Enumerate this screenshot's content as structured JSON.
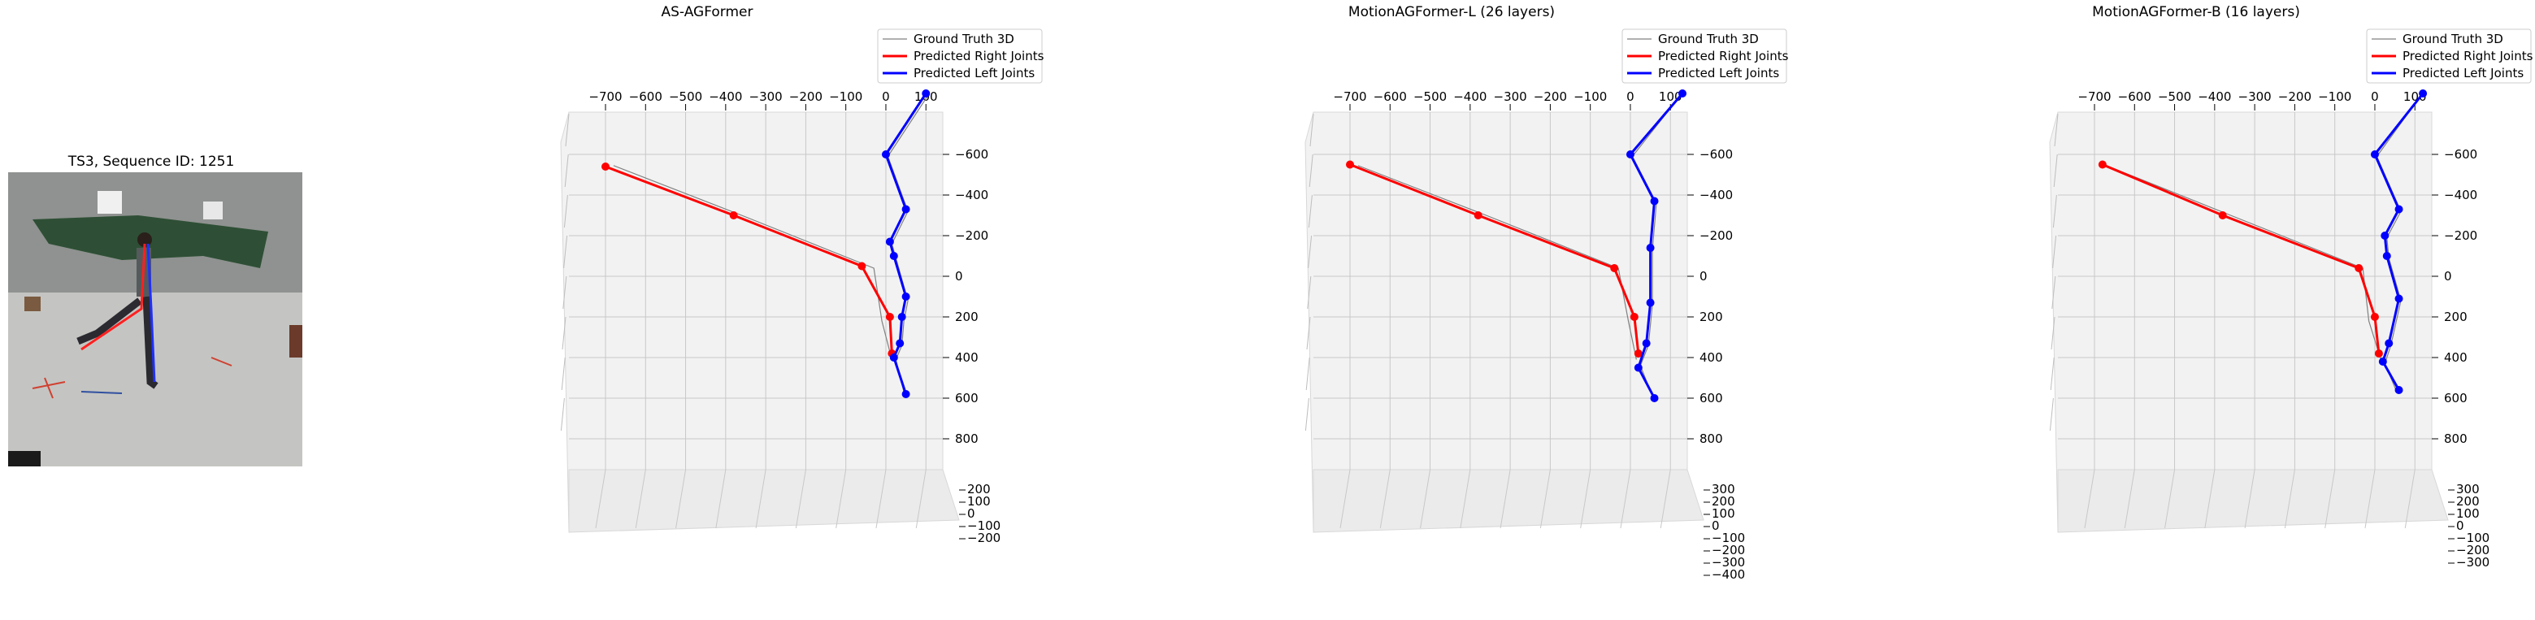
{
  "photo": {
    "title": "TS3, Sequence ID: 1251"
  },
  "legend": {
    "gt": "Ground Truth 3D",
    "right": "Predicted Right Joints",
    "left": "Predicted Left Joints"
  },
  "colors": {
    "gt": "#808080",
    "right": "#ff0000",
    "left": "#0000ff",
    "pane": "#f2f2f2",
    "grid": "#c8c8c8"
  },
  "chart_data": [
    {
      "type": "scatter",
      "title": "AS-AGFormer",
      "x_ticks": [
        -700,
        -600,
        -500,
        -400,
        -300,
        -200,
        -100,
        0,
        100
      ],
      "z_ticks": [
        -600,
        -400,
        -200,
        0,
        200,
        400,
        600,
        800
      ],
      "y_ticks": [
        200,
        100,
        0,
        -100,
        -200
      ],
      "xlim": [
        -730,
        150
      ],
      "zlim": [
        -700,
        950
      ],
      "right_joints": [
        [
          15,
          380
        ],
        [
          10,
          200
        ],
        [
          -60,
          -50
        ],
        [
          -380,
          -300
        ],
        [
          -700,
          -540
        ]
      ],
      "left_joints": [
        [
          50,
          580
        ],
        [
          20,
          400
        ],
        [
          35,
          330
        ],
        [
          40,
          200
        ],
        [
          50,
          100
        ],
        [
          20,
          -100
        ],
        [
          10,
          -170
        ],
        [
          50,
          -330
        ],
        [
          0,
          -600
        ],
        [
          100,
          -900
        ]
      ],
      "gt_right": [
        [
          15,
          410
        ],
        [
          -10,
          220
        ],
        [
          -30,
          -40
        ],
        [
          -360,
          -300
        ],
        [
          -680,
          -545
        ]
      ],
      "gt_left": [
        [
          45,
          570
        ],
        [
          25,
          410
        ],
        [
          40,
          340
        ],
        [
          45,
          220
        ],
        [
          55,
          120
        ],
        [
          25,
          -90
        ],
        [
          15,
          -160
        ],
        [
          55,
          -320
        ],
        [
          5,
          -590
        ],
        [
          105,
          -890
        ]
      ]
    },
    {
      "type": "scatter",
      "title": "MotionAGFormer-L (26 layers)",
      "x_ticks": [
        -700,
        -600,
        -500,
        -400,
        -300,
        -200,
        -100,
        0,
        100
      ],
      "z_ticks": [
        -600,
        -400,
        -200,
        0,
        200,
        400,
        600,
        800
      ],
      "y_ticks": [
        300,
        200,
        100,
        0,
        -100,
        -200,
        -300,
        -400
      ],
      "xlim": [
        -730,
        150
      ],
      "zlim": [
        -700,
        950
      ],
      "right_joints": [
        [
          20,
          380
        ],
        [
          10,
          200
        ],
        [
          -40,
          -40
        ],
        [
          -380,
          -300
        ],
        [
          -700,
          -550
        ]
      ],
      "left_joints": [
        [
          60,
          600
        ],
        [
          20,
          450
        ],
        [
          40,
          330
        ],
        [
          50,
          130
        ],
        [
          50,
          -140
        ],
        [
          60,
          -370
        ],
        [
          0,
          -600
        ],
        [
          130,
          -900
        ]
      ],
      "gt_right": [
        [
          15,
          410
        ],
        [
          -5,
          220
        ],
        [
          -30,
          -40
        ],
        [
          -360,
          -300
        ],
        [
          -680,
          -545
        ]
      ],
      "gt_left": [
        [
          55,
          590
        ],
        [
          25,
          440
        ],
        [
          45,
          340
        ],
        [
          55,
          140
        ],
        [
          55,
          -130
        ],
        [
          65,
          -360
        ],
        [
          5,
          -590
        ],
        [
          125,
          -890
        ]
      ]
    },
    {
      "type": "scatter",
      "title": "MotionAGFormer-B (16 layers)",
      "x_ticks": [
        -700,
        -600,
        -500,
        -400,
        -300,
        -200,
        -100,
        0,
        100
      ],
      "z_ticks": [
        -600,
        -400,
        -200,
        0,
        200,
        400,
        600,
        800
      ],
      "y_ticks": [
        300,
        200,
        100,
        0,
        -100,
        -200,
        -300
      ],
      "xlim": [
        -730,
        150
      ],
      "zlim": [
        -700,
        950
      ],
      "right_joints": [
        [
          10,
          380
        ],
        [
          0,
          200
        ],
        [
          -40,
          -40
        ],
        [
          -380,
          -300
        ],
        [
          -680,
          -550
        ]
      ],
      "left_joints": [
        [
          60,
          560
        ],
        [
          20,
          420
        ],
        [
          35,
          330
        ],
        [
          60,
          110
        ],
        [
          30,
          -100
        ],
        [
          25,
          -200
        ],
        [
          60,
          -330
        ],
        [
          0,
          -600
        ],
        [
          120,
          -900
        ]
      ],
      "gt_right": [
        [
          15,
          410
        ],
        [
          -15,
          220
        ],
        [
          -30,
          -40
        ],
        [
          -360,
          -300
        ],
        [
          -670,
          -545
        ]
      ],
      "gt_left": [
        [
          55,
          570
        ],
        [
          25,
          430
        ],
        [
          40,
          340
        ],
        [
          65,
          120
        ],
        [
          35,
          -90
        ],
        [
          30,
          -190
        ],
        [
          65,
          -320
        ],
        [
          5,
          -590
        ],
        [
          115,
          -890
        ]
      ]
    }
  ]
}
